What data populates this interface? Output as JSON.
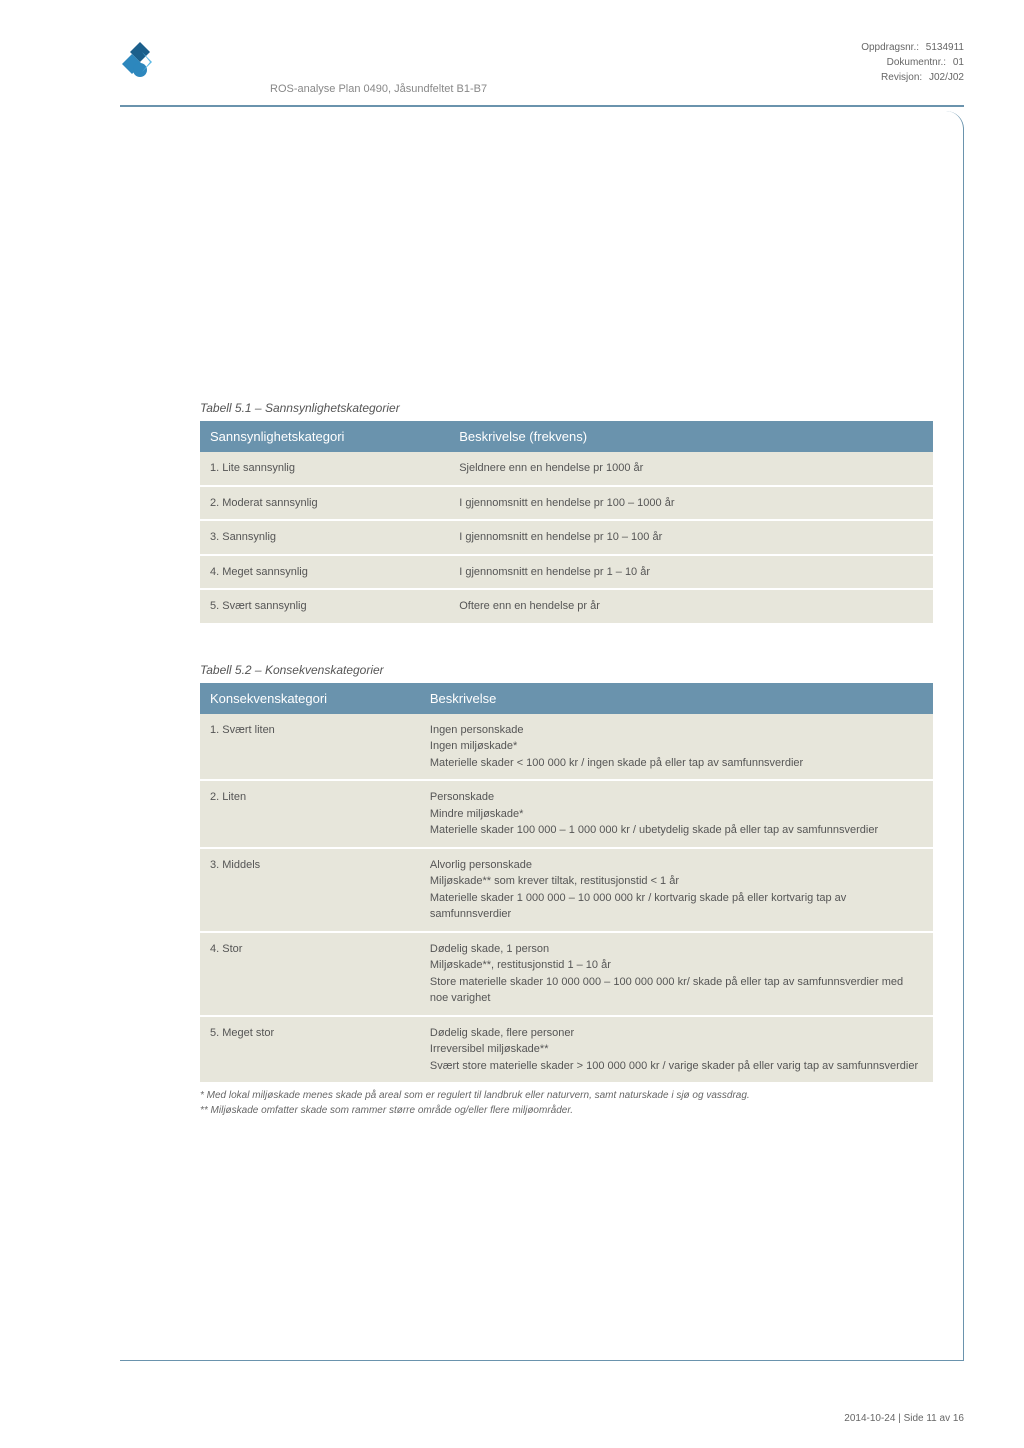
{
  "header": {
    "subtitle": "ROS-analyse Plan 0490, Jåsundfeltet B1-B7",
    "meta": {
      "oppdragsnr_label": "Oppdragsnr.:",
      "oppdragsnr_value": "5134911",
      "dokumentnr_label": "Dokumentnr.:",
      "dokumentnr_value": "01",
      "revisjon_label": "Revisjon:",
      "revisjon_value": "J02/J02"
    }
  },
  "logo": {
    "fill_top": "#1b5f8b",
    "fill_bottom": "#2d87bd",
    "accent": "#5bb9e6"
  },
  "table1": {
    "title": "Tabell 5.1 – Sannsynlighetskategorier",
    "headers": [
      "Sannsynlighetskategori",
      "Beskrivelse (frekvens)"
    ],
    "rows": [
      [
        "1. Lite sannsynlig",
        "Sjeldnere enn en hendelse pr 1000 år"
      ],
      [
        "2. Moderat sannsynlig",
        "I gjennomsnitt en hendelse pr 100 – 1000 år"
      ],
      [
        "3. Sannsynlig",
        "I gjennomsnitt en hendelse pr 10 – 100 år"
      ],
      [
        "4. Meget sannsynlig",
        "I gjennomsnitt en hendelse pr 1 – 10 år"
      ],
      [
        "5. Svært sannsynlig",
        "Oftere enn en hendelse pr år"
      ]
    ]
  },
  "table2": {
    "title": "Tabell 5.2 – Konsekvenskategorier",
    "headers": [
      "Konsekvenskategori",
      "Beskrivelse"
    ],
    "rows": [
      [
        "1. Svært liten",
        "Ingen personskade\nIngen miljøskade*\nMaterielle skader < 100 000 kr / ingen skade på eller tap av samfunnsverdier"
      ],
      [
        "2. Liten",
        "Personskade\nMindre miljøskade*\nMaterielle skader 100 000 – 1 000 000 kr / ubetydelig skade på eller tap av samfunnsverdier"
      ],
      [
        "3. Middels",
        "Alvorlig personskade\nMiljøskade** som krever tiltak, restitusjonstid < 1 år\nMaterielle skader 1 000 000 – 10 000 000 kr / kortvarig skade på eller kortvarig tap av samfunnsverdier"
      ],
      [
        "4. Stor",
        "Dødelig skade, 1 person\nMiljøskade**, restitusjonstid 1 – 10 år\nStore materielle skader 10 000 000 – 100 000 000 kr/ skade på eller tap av samfunnsverdier med noe varighet"
      ],
      [
        "5. Meget stor",
        "Dødelig skade, flere personer\nIrreversibel miljøskade**\nSvært store materielle skader > 100 000 000 kr / varige skader på eller varig tap av samfunnsverdier"
      ]
    ]
  },
  "footnotes": {
    "f1": "* Med lokal miljøskade menes skade på areal som er regulert til landbruk eller naturvern, samt naturskade i sjø og vassdrag.",
    "f2": "** Miljøskade omfatter skade som rammer større område og/eller flere miljøområder."
  },
  "footer": {
    "page": "2014-10-24  |  Side 11 av 16"
  },
  "colors": {
    "header_bg": "#6a93ad",
    "cell_bg": "#e7e6db",
    "divider": "#6a93ad"
  }
}
